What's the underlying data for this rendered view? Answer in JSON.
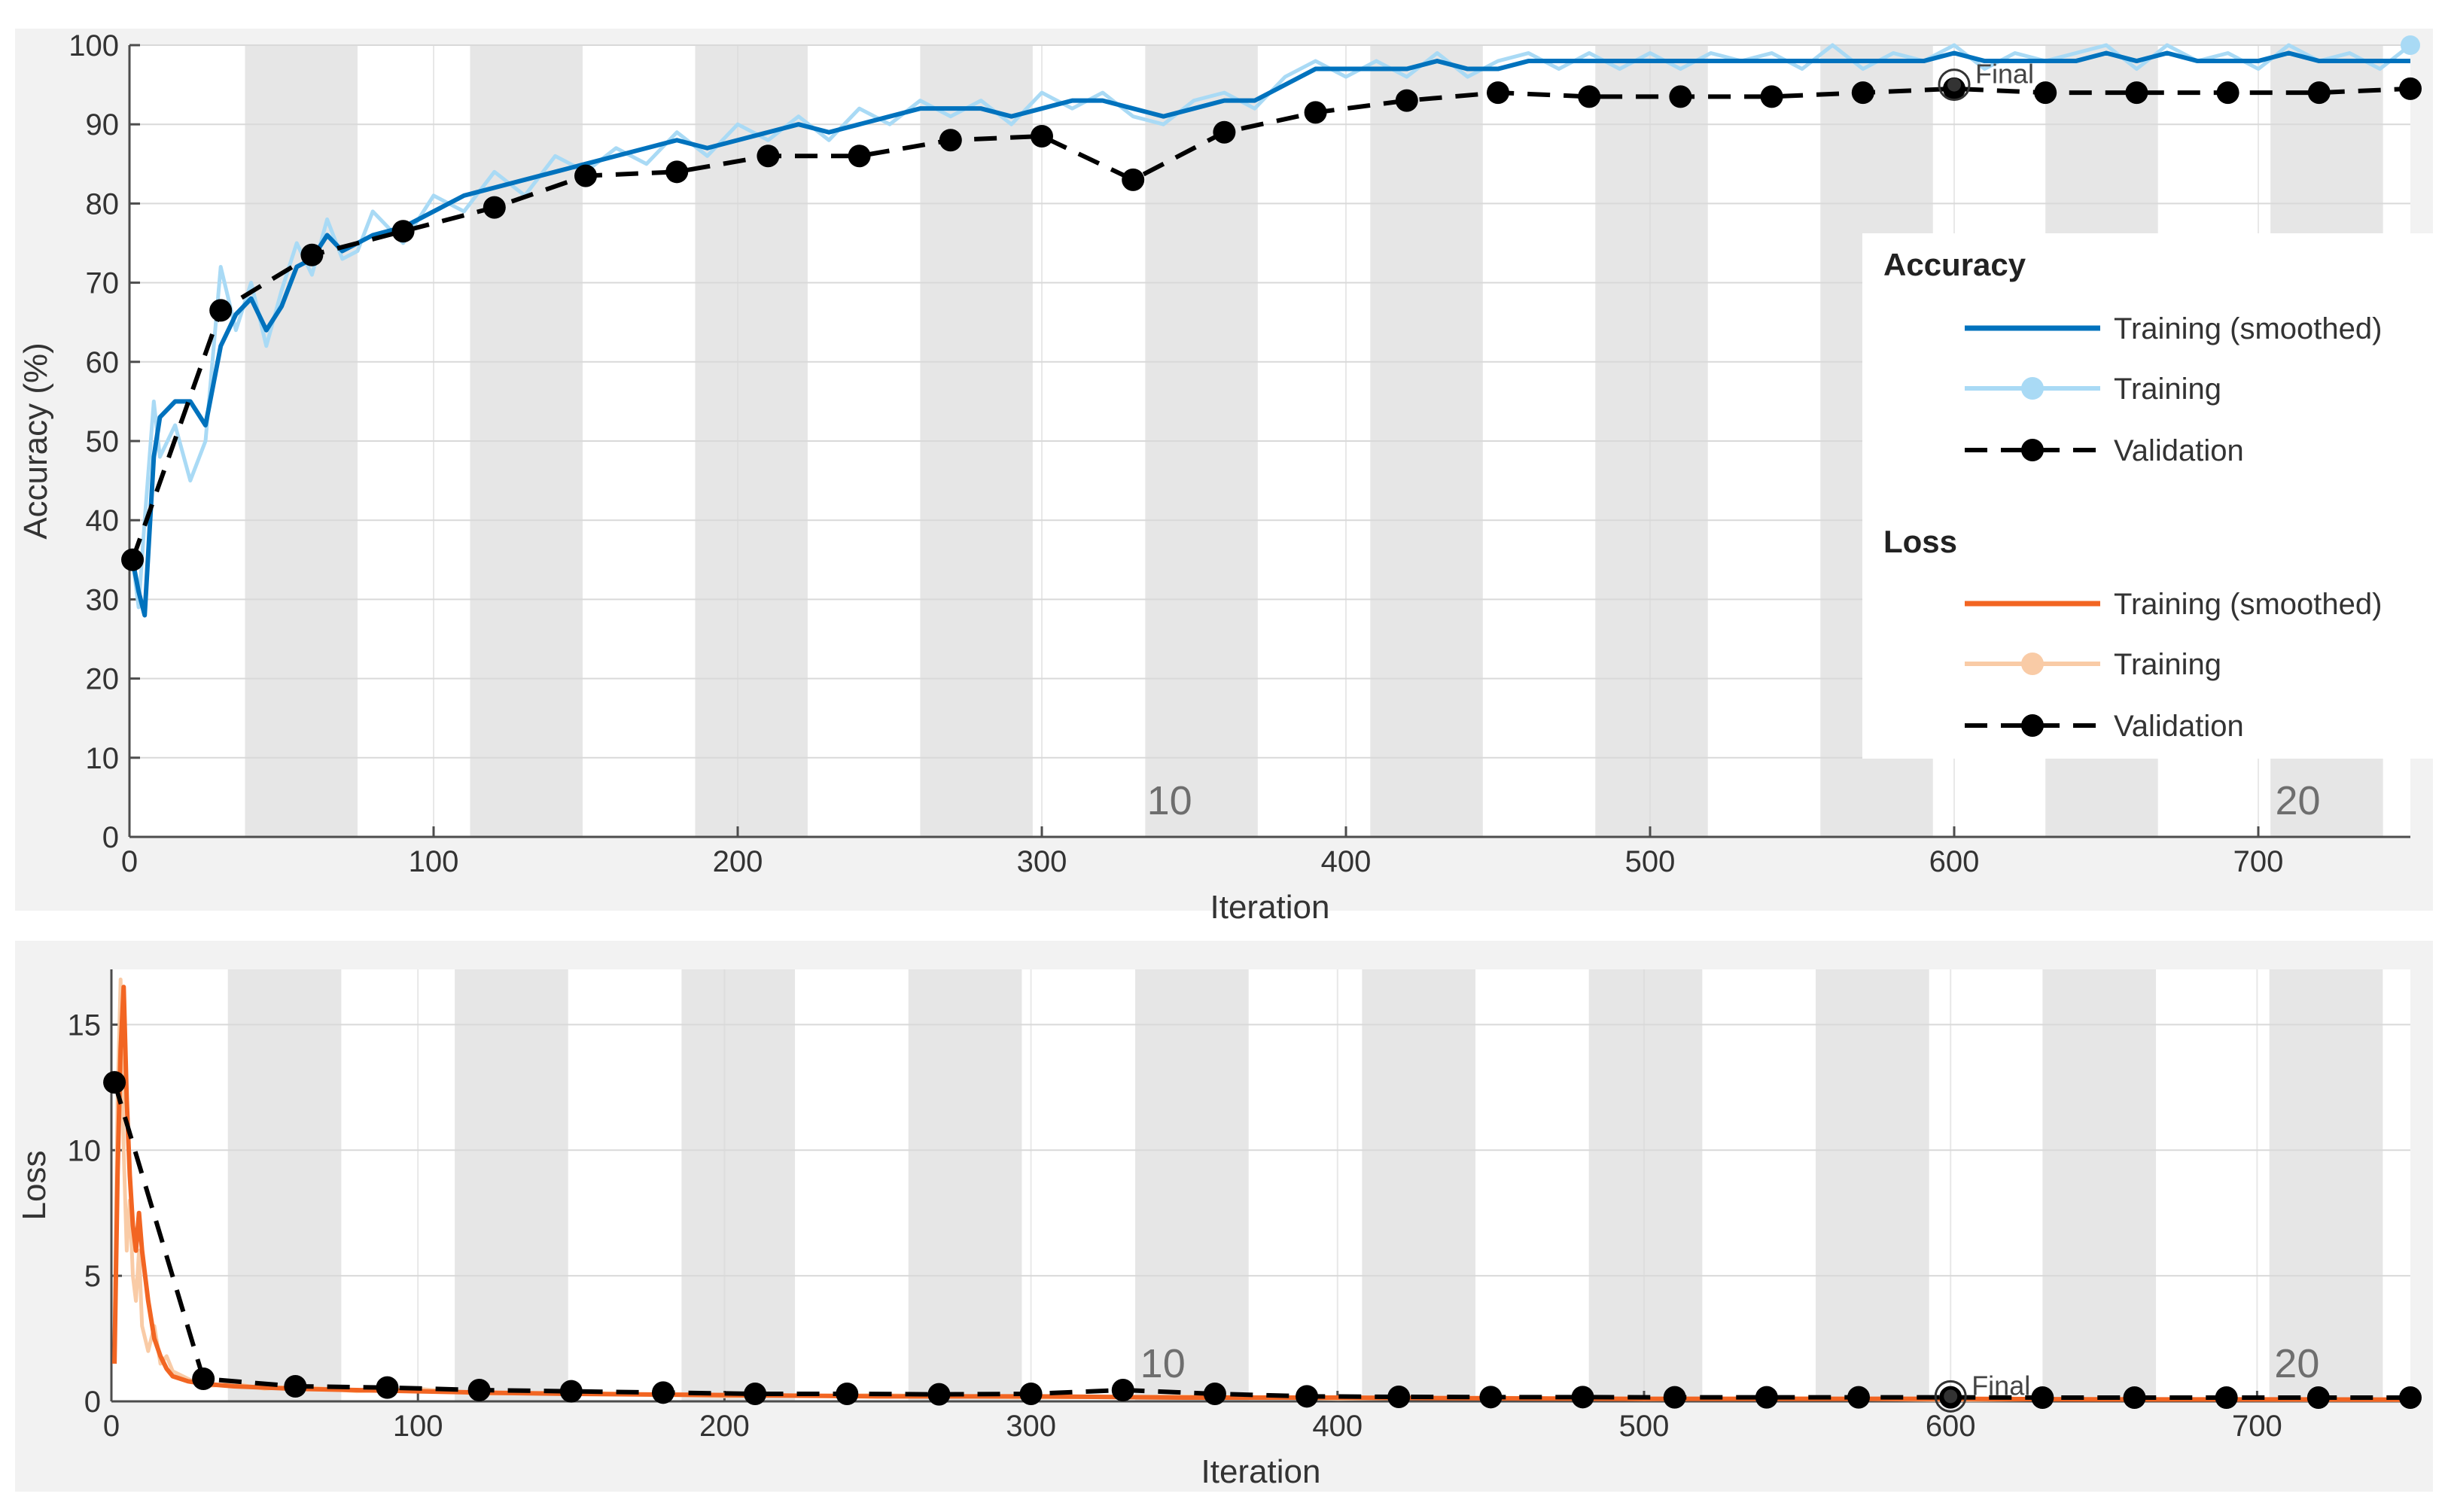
{
  "colors": {
    "accuracy_smoothed": "#0072BD",
    "accuracy_raw": "#A9DAF5",
    "loss_smoothed": "#F26522",
    "loss_raw": "#F9CBA6",
    "validation": "#000000",
    "epoch_band": "#E6E6E6",
    "frame_bg": "#F2F2F2"
  },
  "final_label": "Final",
  "legend": {
    "accuracy_title": "Accuracy",
    "loss_title": "Loss",
    "training_smoothed": "Training (smoothed)",
    "training": "Training",
    "validation": "Validation"
  },
  "chart_data": [
    {
      "type": "line",
      "id": "accuracy",
      "xlabel": "Iteration",
      "ylabel": "Accuracy (%)",
      "xlim": [
        0,
        750
      ],
      "ylim": [
        0,
        100
      ],
      "xticks": [
        0,
        100,
        200,
        300,
        400,
        500,
        600,
        700
      ],
      "yticks": [
        0,
        10,
        20,
        30,
        40,
        50,
        60,
        70,
        80,
        90,
        100
      ],
      "epoch_labels": [
        {
          "text": "10",
          "x": 342
        },
        {
          "text": "20",
          "x": 713
        }
      ],
      "epoch_bands": [
        [
          38,
          75
        ],
        [
          112,
          149
        ],
        [
          186,
          223
        ],
        [
          260,
          297
        ],
        [
          334,
          371
        ],
        [
          408,
          445
        ],
        [
          482,
          519
        ],
        [
          556,
          593
        ],
        [
          630,
          667
        ],
        [
          704,
          741
        ]
      ],
      "final_marker": {
        "x": 600,
        "y": 95
      },
      "series": [
        {
          "name": "Training (smoothed)",
          "x": [
            1,
            3,
            5,
            8,
            10,
            15,
            20,
            25,
            30,
            35,
            40,
            45,
            50,
            55,
            60,
            65,
            70,
            75,
            80,
            90,
            100,
            110,
            120,
            130,
            140,
            150,
            160,
            170,
            180,
            190,
            200,
            210,
            220,
            230,
            240,
            250,
            260,
            270,
            280,
            290,
            300,
            310,
            320,
            330,
            340,
            350,
            360,
            370,
            380,
            390,
            400,
            410,
            420,
            430,
            440,
            450,
            460,
            470,
            480,
            490,
            500,
            510,
            520,
            530,
            540,
            550,
            560,
            570,
            580,
            590,
            600,
            610,
            620,
            630,
            640,
            650,
            660,
            670,
            680,
            690,
            700,
            710,
            720,
            730,
            740,
            750
          ],
          "values": [
            35,
            31,
            28,
            48,
            53,
            55,
            55,
            52,
            62,
            66,
            68,
            64,
            67,
            72,
            73,
            76,
            74,
            75,
            76,
            77,
            79,
            81,
            82,
            83,
            84,
            85,
            86,
            87,
            88,
            87,
            88,
            89,
            90,
            89,
            90,
            91,
            92,
            92,
            92,
            91,
            92,
            93,
            93,
            92,
            91,
            92,
            93,
            93,
            95,
            97,
            97,
            97,
            97,
            98,
            97,
            97,
            98,
            98,
            98,
            98,
            98,
            98,
            98,
            98,
            98,
            98,
            98,
            98,
            98,
            98,
            99,
            98,
            98,
            98,
            98,
            99,
            98,
            99,
            98,
            98,
            98,
            99,
            98,
            98,
            98,
            98
          ]
        },
        {
          "name": "Training",
          "x": [
            1,
            3,
            5,
            8,
            10,
            15,
            20,
            25,
            30,
            35,
            40,
            45,
            50,
            55,
            60,
            65,
            70,
            75,
            80,
            90,
            100,
            110,
            120,
            130,
            140,
            150,
            160,
            170,
            180,
            190,
            200,
            210,
            220,
            230,
            240,
            250,
            260,
            270,
            280,
            290,
            300,
            310,
            320,
            330,
            340,
            350,
            360,
            370,
            380,
            390,
            400,
            410,
            420,
            430,
            440,
            450,
            460,
            470,
            480,
            490,
            500,
            510,
            520,
            530,
            540,
            550,
            560,
            570,
            580,
            590,
            600,
            610,
            620,
            630,
            640,
            650,
            660,
            670,
            680,
            690,
            700,
            710,
            720,
            730,
            740,
            750
          ],
          "values": [
            35,
            29,
            40,
            55,
            48,
            52,
            45,
            50,
            72,
            64,
            70,
            62,
            69,
            75,
            71,
            78,
            73,
            74,
            79,
            75,
            81,
            79,
            84,
            81,
            86,
            84,
            87,
            85,
            89,
            86,
            90,
            88,
            91,
            88,
            92,
            90,
            93,
            91,
            93,
            90,
            94,
            92,
            94,
            91,
            90,
            93,
            94,
            92,
            96,
            98,
            96,
            98,
            96,
            99,
            96,
            98,
            99,
            97,
            99,
            97,
            99,
            97,
            99,
            98,
            99,
            97,
            100,
            97,
            99,
            98,
            100,
            97,
            99,
            98,
            99,
            100,
            97,
            100,
            98,
            99,
            97,
            100,
            98,
            99,
            97,
            100
          ]
        },
        {
          "name": "Validation",
          "x": [
            1,
            30,
            60,
            90,
            120,
            150,
            180,
            210,
            240,
            270,
            300,
            330,
            360,
            390,
            420,
            450,
            480,
            510,
            540,
            570,
            600,
            630,
            660,
            690,
            720,
            750
          ],
          "values": [
            35,
            66.5,
            73.5,
            76.5,
            79.5,
            83.5,
            84,
            86,
            86,
            88,
            88.5,
            83,
            89,
            91.5,
            93,
            94,
            93.5,
            93.5,
            93.5,
            94,
            94.5,
            94,
            94,
            94,
            94,
            94.5
          ]
        }
      ]
    },
    {
      "type": "line",
      "id": "loss",
      "xlabel": "Iteration",
      "ylabel": "Loss",
      "xlim": [
        0,
        750
      ],
      "ylim": [
        0,
        17.2
      ],
      "xticks": [
        0,
        100,
        200,
        300,
        400,
        500,
        600,
        700
      ],
      "yticks": [
        0,
        5,
        10,
        15
      ],
      "epoch_labels": [
        {
          "text": "10",
          "x": 343
        },
        {
          "text": "20",
          "x": 713
        }
      ],
      "epoch_bands": [
        [
          38,
          75
        ],
        [
          112,
          149
        ],
        [
          186,
          223
        ],
        [
          260,
          297
        ],
        [
          334,
          371
        ],
        [
          408,
          445
        ],
        [
          482,
          519
        ],
        [
          556,
          593
        ],
        [
          630,
          667
        ],
        [
          704,
          741
        ]
      ],
      "final_marker": {
        "x": 600,
        "y": 0.2
      },
      "series": [
        {
          "name": "Training (smoothed)",
          "x": [
            1,
            2,
            3,
            4,
            5,
            6,
            7,
            8,
            9,
            10,
            12,
            14,
            16,
            18,
            20,
            25,
            30,
            40,
            50,
            60,
            80,
            100,
            120,
            150,
            200,
            250,
            300,
            350,
            400,
            450,
            500,
            550,
            600,
            650,
            700,
            750
          ],
          "values": [
            1.5,
            9,
            14,
            16.5,
            12,
            9,
            7,
            6,
            7.5,
            6,
            4,
            2.5,
            1.8,
            1.3,
            1.0,
            0.8,
            0.7,
            0.6,
            0.55,
            0.5,
            0.45,
            0.4,
            0.35,
            0.3,
            0.25,
            0.2,
            0.2,
            0.15,
            0.15,
            0.12,
            0.1,
            0.1,
            0.1,
            0.08,
            0.08,
            0.07
          ]
        },
        {
          "name": "Training",
          "x": [
            1,
            2,
            3,
            4,
            5,
            6,
            7,
            8,
            9,
            10,
            12,
            14,
            16,
            18,
            20,
            25,
            30,
            40,
            50,
            60,
            80,
            100,
            120,
            150,
            200,
            250,
            300,
            350,
            400,
            450,
            500,
            550,
            600,
            650,
            700,
            750
          ],
          "values": [
            2,
            12,
            16.8,
            10,
            6,
            8,
            5,
            4,
            6,
            3,
            2,
            3,
            1.5,
            1.8,
            1.2,
            0.9,
            0.6,
            0.7,
            0.5,
            0.6,
            0.4,
            0.5,
            0.3,
            0.35,
            0.2,
            0.25,
            0.15,
            0.2,
            0.1,
            0.15,
            0.08,
            0.12,
            0.05,
            0.1,
            0.06,
            0.05
          ]
        },
        {
          "name": "Validation",
          "x": [
            1,
            30,
            60,
            90,
            120,
            150,
            180,
            210,
            240,
            270,
            300,
            330,
            360,
            390,
            420,
            450,
            480,
            510,
            540,
            570,
            600,
            630,
            660,
            690,
            720,
            750
          ],
          "values": [
            12.7,
            0.9,
            0.6,
            0.55,
            0.45,
            0.4,
            0.35,
            0.3,
            0.3,
            0.28,
            0.3,
            0.45,
            0.3,
            0.2,
            0.18,
            0.17,
            0.17,
            0.16,
            0.16,
            0.16,
            0.16,
            0.15,
            0.15,
            0.15,
            0.15,
            0.15
          ]
        }
      ]
    }
  ]
}
